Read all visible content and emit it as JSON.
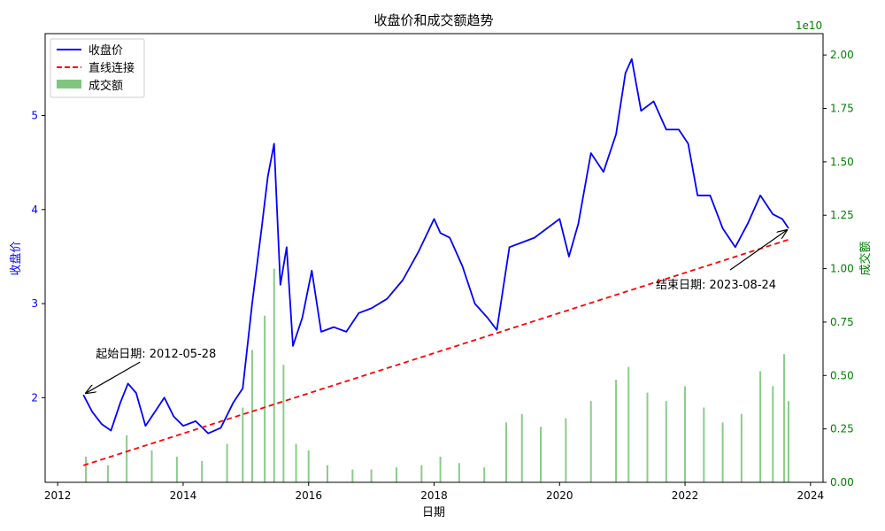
{
  "chart_data": {
    "type": "line",
    "title": "收盘价和成交额趋势",
    "xlabel": "日期",
    "ylabel_left": "收盘价",
    "ylabel_right": "成交额",
    "right_axis_exponent": "1e10",
    "xlim": [
      2011.8,
      2024.2
    ],
    "ylim_left": [
      1.1,
      5.87
    ],
    "ylim_right": [
      0,
      2.1
    ],
    "x_ticks": [
      "2012",
      "2014",
      "2016",
      "2018",
      "2020",
      "2022",
      "2024"
    ],
    "y_ticks_left": [
      "2",
      "3",
      "4",
      "5"
    ],
    "y_ticks_right": [
      "0.00",
      "0.25",
      "0.50",
      "0.75",
      "1.00",
      "1.25",
      "1.50",
      "1.75",
      "2.00"
    ],
    "legend_position": "top-left",
    "grid": false,
    "colors": {
      "close": "#0000ff",
      "trend": "#ff0000",
      "volume": "#2ca02c",
      "left_axis": "#0000ff",
      "right_axis": "#008000"
    },
    "series": [
      {
        "name": "收盘价",
        "style": "solid",
        "x": [
          2012.41,
          2012.55,
          2012.7,
          2012.85,
          2013.0,
          2013.12,
          2013.25,
          2013.4,
          2013.55,
          2013.7,
          2013.85,
          2014.0,
          2014.2,
          2014.4,
          2014.6,
          2014.8,
          2014.95,
          2015.1,
          2015.25,
          2015.35,
          2015.45,
          2015.55,
          2015.65,
          2015.75,
          2015.9,
          2016.05,
          2016.2,
          2016.4,
          2016.6,
          2016.8,
          2017.0,
          2017.25,
          2017.5,
          2017.75,
          2018.0,
          2018.1,
          2018.25,
          2018.45,
          2018.65,
          2018.85,
          2019.0,
          2019.2,
          2019.4,
          2019.6,
          2019.8,
          2020.0,
          2020.15,
          2020.3,
          2020.5,
          2020.7,
          2020.9,
          2021.05,
          2021.15,
          2021.3,
          2021.5,
          2021.7,
          2021.9,
          2022.05,
          2022.2,
          2022.4,
          2022.6,
          2022.8,
          2023.0,
          2023.2,
          2023.4,
          2023.55,
          2023.65
        ],
        "values": [
          2.03,
          1.85,
          1.72,
          1.65,
          1.95,
          2.15,
          2.05,
          1.7,
          1.85,
          2.0,
          1.8,
          1.7,
          1.75,
          1.62,
          1.68,
          1.95,
          2.1,
          3.0,
          3.8,
          4.35,
          4.7,
          3.2,
          3.6,
          2.55,
          2.85,
          3.35,
          2.7,
          2.75,
          2.7,
          2.9,
          2.95,
          3.05,
          3.25,
          3.55,
          3.9,
          3.75,
          3.7,
          3.4,
          3.0,
          2.85,
          2.72,
          3.6,
          3.65,
          3.7,
          3.8,
          3.9,
          3.5,
          3.85,
          4.6,
          4.4,
          4.8,
          5.45,
          5.6,
          5.05,
          5.15,
          4.85,
          4.85,
          4.7,
          4.15,
          4.15,
          3.8,
          3.6,
          3.85,
          4.15,
          3.95,
          3.9,
          3.8
        ]
      },
      {
        "name": "直线连接",
        "style": "dashed",
        "x": [
          2012.41,
          2023.65
        ],
        "values": [
          1.28,
          3.68
        ]
      },
      {
        "name": "成交额",
        "type": "bar",
        "axis": "right",
        "x": [
          2012.45,
          2012.8,
          2013.1,
          2013.5,
          2013.9,
          2014.3,
          2014.7,
          2014.95,
          2015.1,
          2015.3,
          2015.45,
          2015.6,
          2015.8,
          2016.0,
          2016.3,
          2016.7,
          2017.0,
          2017.4,
          2017.8,
          2018.1,
          2018.4,
          2018.8,
          2019.15,
          2019.4,
          2019.7,
          2020.1,
          2020.5,
          2020.9,
          2021.1,
          2021.4,
          2021.7,
          2022.0,
          2022.3,
          2022.6,
          2022.9,
          2023.2,
          2023.4,
          2023.58,
          2023.65
        ],
        "values": [
          0.12,
          0.08,
          0.22,
          0.15,
          0.12,
          0.1,
          0.18,
          0.35,
          0.62,
          0.78,
          1.0,
          0.55,
          0.18,
          0.15,
          0.08,
          0.06,
          0.06,
          0.07,
          0.08,
          0.12,
          0.09,
          0.07,
          0.28,
          0.32,
          0.26,
          0.3,
          0.38,
          0.48,
          0.54,
          0.42,
          0.38,
          0.45,
          0.35,
          0.28,
          0.32,
          0.52,
          0.45,
          0.6,
          0.38
        ]
      }
    ],
    "legend": [
      "收盘价",
      "直线连接",
      "成交额"
    ],
    "annotations": [
      {
        "text": "起始日期: 2012-05-28",
        "x": 2012.41,
        "y": 2.03
      },
      {
        "text": "结束日期: 2023-08-24",
        "x": 2023.65,
        "y": 3.8
      }
    ]
  }
}
